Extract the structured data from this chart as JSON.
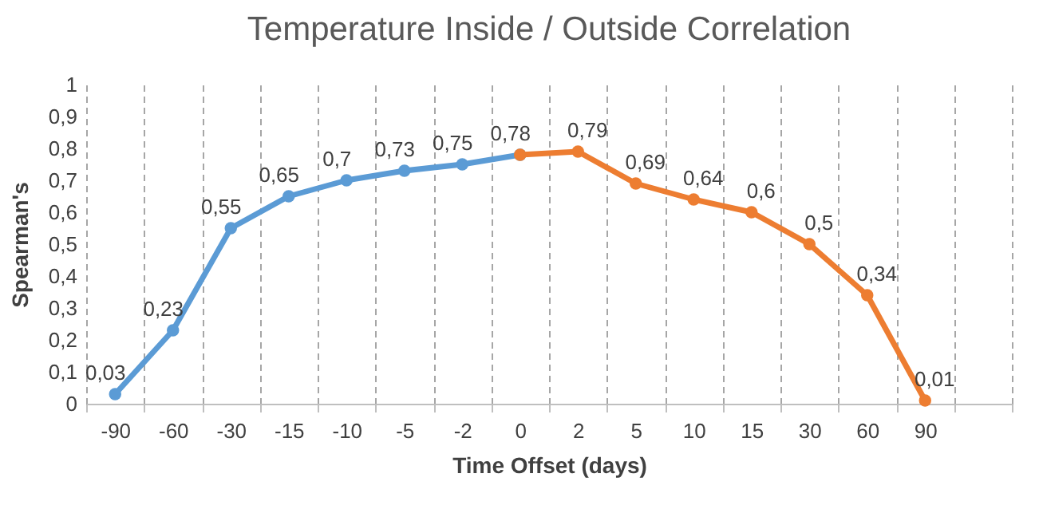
{
  "chart_data": {
    "type": "line",
    "title": "Temperature Inside / Outside Correlation",
    "xlabel": "Time Offset (days)",
    "ylabel": "Spearman's",
    "categories": [
      "-90",
      "-60",
      "-30",
      "-15",
      "-10",
      "-5",
      "-2",
      "0",
      "2",
      "5",
      "10",
      "15",
      "30",
      "60",
      "90",
      null
    ],
    "series": [
      {
        "color": "#5b9bd5",
        "values": [
          0.03,
          0.23,
          0.55,
          0.65,
          0.7,
          0.73,
          0.75,
          0.78,
          null,
          null,
          null,
          null,
          null,
          null,
          null,
          null
        ],
        "value_labels": [
          "0,03",
          "0,23",
          "0,55",
          "0,65",
          "0,7",
          "0,73",
          "0,75",
          "0,78",
          null,
          null,
          null,
          null,
          null,
          null,
          null,
          null
        ]
      },
      {
        "color": "#ed7d31",
        "values": [
          null,
          null,
          null,
          null,
          null,
          null,
          null,
          0.78,
          0.79,
          0.69,
          0.64,
          0.6,
          0.5,
          0.34,
          0.01,
          null
        ],
        "value_labels": [
          null,
          null,
          null,
          null,
          null,
          null,
          null,
          null,
          "0,79",
          "0,69",
          "0,64",
          "0,6",
          "0,5",
          "0,34",
          "0,01",
          null
        ]
      }
    ],
    "ylim": [
      0,
      1
    ],
    "yticks": [
      0,
      {
        "value": 0.1,
        "label": "0,1"
      },
      {
        "value": 0.2,
        "label": "0,2"
      },
      {
        "value": 0.3,
        "label": "0,3"
      },
      {
        "value": 0.4,
        "label": "0,4"
      },
      {
        "value": 0.5,
        "label": "0,5"
      },
      {
        "value": 0.6,
        "label": "0,6"
      },
      {
        "value": 0.7,
        "label": "0,7"
      },
      {
        "value": 0.8,
        "label": "0,8"
      },
      {
        "value": 0.9,
        "label": "0,9"
      },
      1
    ],
    "grid": "x",
    "marker": "circle",
    "line_style": "solid"
  }
}
